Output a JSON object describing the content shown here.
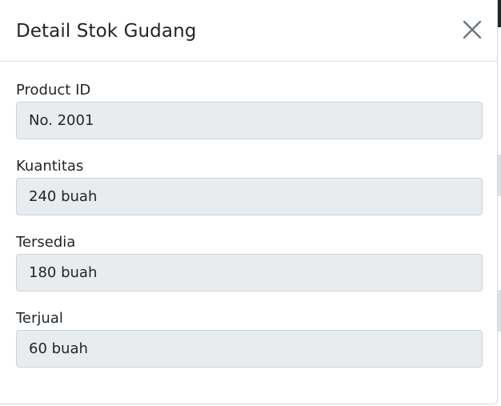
{
  "modal": {
    "title": "Detail Stok Gudang",
    "close_icon": "close-icon"
  },
  "fields": [
    {
      "label": "Product ID",
      "value": "No. 2001"
    },
    {
      "label": "Kuantitas",
      "value": "240 buah"
    },
    {
      "label": "Tersedia",
      "value": "180 buah"
    },
    {
      "label": "Terjual",
      "value": "60 buah"
    }
  ]
}
